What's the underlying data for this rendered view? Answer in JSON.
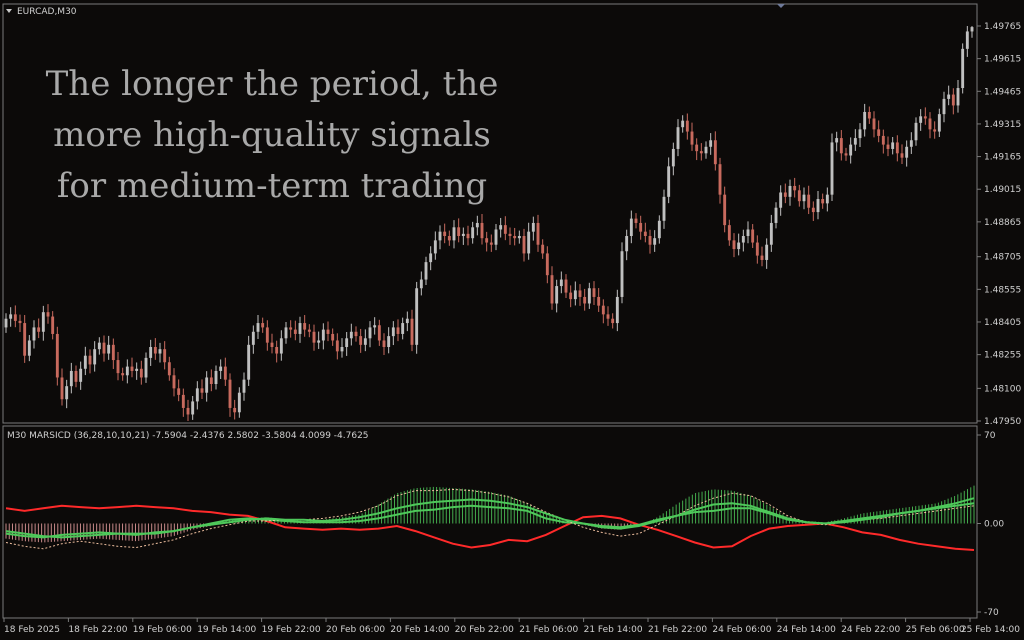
{
  "chart_data": [
    {
      "type": "candlestick",
      "title": "EURCAD,M30",
      "y_ticks": [
        "1.49765",
        "1.49615",
        "1.49465",
        "1.49315",
        "1.49165",
        "1.49015",
        "1.48865",
        "1.48705",
        "1.48555",
        "1.48405",
        "1.48255",
        "1.48100",
        "1.47950"
      ],
      "ylim": [
        1.4795,
        1.49765
      ],
      "x_ticks": [
        "18 Feb 2025",
        "18 Feb 22:00",
        "19 Feb 06:00",
        "19 Feb 14:00",
        "19 Feb 22:00",
        "20 Feb 06:00",
        "20 Feb 14:00",
        "20 Feb 22:00",
        "21 Feb 06:00",
        "21 Feb 14:00",
        "21 Feb 22:00",
        "24 Feb 06:00",
        "24 Feb 14:00",
        "24 Feb 22:00",
        "25 Feb 06:00",
        "25 Feb 14:00"
      ],
      "colors": {
        "bull": "#c0c0c0",
        "bear": "#c86a5e"
      },
      "close": [
        1.4842,
        1.4844,
        1.4841,
        1.484,
        1.4825,
        1.4832,
        1.4838,
        1.4836,
        1.4845,
        1.4843,
        1.4835,
        1.4815,
        1.4805,
        1.4811,
        1.4818,
        1.4813,
        1.4819,
        1.4825,
        1.4821,
        1.4828,
        1.4831,
        1.4826,
        1.483,
        1.4823,
        1.4817,
        1.4816,
        1.482,
        1.4818,
        1.4819,
        1.4815,
        1.4824,
        1.4829,
        1.4826,
        1.4828,
        1.4822,
        1.4816,
        1.481,
        1.4807,
        1.4801,
        1.4798,
        1.4804,
        1.481,
        1.4808,
        1.4815,
        1.4812,
        1.4818,
        1.482,
        1.4814,
        1.4801,
        1.4799,
        1.4808,
        1.4814,
        1.483,
        1.4836,
        1.484,
        1.4838,
        1.4831,
        1.4829,
        1.4826,
        1.4833,
        1.4838,
        1.4837,
        1.4835,
        1.484,
        1.4837,
        1.4836,
        1.4831,
        1.4832,
        1.4837,
        1.4835,
        1.4832,
        1.4827,
        1.4829,
        1.4833,
        1.4836,
        1.4834,
        1.483,
        1.4833,
        1.4838,
        1.4839,
        1.4832,
        1.4829,
        1.4834,
        1.4838,
        1.4835,
        1.484,
        1.4842,
        1.483,
        1.4856,
        1.486,
        1.4868,
        1.4872,
        1.4878,
        1.4882,
        1.488,
        1.4878,
        1.4884,
        1.488,
        1.4881,
        1.4879,
        1.4884,
        1.4886,
        1.4879,
        1.4877,
        1.4876,
        1.4883,
        1.4885,
        1.4881,
        1.488,
        1.4879,
        1.488,
        1.4872,
        1.4882,
        1.4886,
        1.4876,
        1.4872,
        1.4862,
        1.4849,
        1.4857,
        1.486,
        1.4854,
        1.4851,
        1.4855,
        1.4852,
        1.4849,
        1.4856,
        1.4852,
        1.4848,
        1.4844,
        1.4842,
        1.484,
        1.4852,
        1.4873,
        1.488,
        1.4888,
        1.4886,
        1.4882,
        1.488,
        1.4876,
        1.4879,
        1.4887,
        1.4898,
        1.4912,
        1.492,
        1.493,
        1.4933,
        1.4928,
        1.4922,
        1.4919,
        1.4918,
        1.4921,
        1.4924,
        1.4913,
        1.4899,
        1.4885,
        1.4878,
        1.4874,
        1.4877,
        1.488,
        1.4883,
        1.4877,
        1.4871,
        1.4869,
        1.4876,
        1.4886,
        1.4893,
        1.49,
        1.4898,
        1.4903,
        1.4901,
        1.4896,
        1.4899,
        1.4893,
        1.4891,
        1.4897,
        1.4895,
        1.4899,
        1.4923,
        1.4925,
        1.4918,
        1.4917,
        1.4922,
        1.4925,
        1.4929,
        1.4937,
        1.4934,
        1.4929,
        1.4926,
        1.4922,
        1.492,
        1.4923,
        1.4918,
        1.4916,
        1.4921,
        1.4924,
        1.4932,
        1.4935,
        1.4934,
        1.4929,
        1.4928,
        1.4936,
        1.4943,
        1.4945,
        1.494,
        1.4948,
        1.4966,
        1.4974,
        1.4976
      ]
    },
    {
      "type": "line",
      "title": "M30 MARSICD (36,28,10,10,21) -7.5904 -2.4376 2.5802 -3.5804 4.0099 -4.7625",
      "y_ticks": [
        "70",
        "0.00",
        "-70"
      ],
      "ylim": [
        -70,
        70
      ],
      "series": [
        {
          "color": "#ff2a2a",
          "values": [
            12,
            10,
            12,
            14,
            13,
            12,
            13,
            14,
            13,
            12,
            10,
            9,
            7,
            6,
            2,
            -3,
            -4,
            -5,
            -4,
            -5,
            -4,
            -2,
            -6,
            -11,
            -16,
            -19,
            -17,
            -13,
            -14,
            -9,
            -2,
            5,
            6,
            4,
            -1,
            -5,
            -10,
            -15,
            -19,
            -18,
            -10,
            -4,
            -2,
            -1,
            0,
            -3,
            -7,
            -9,
            -13,
            -16,
            -18,
            -20,
            -21
          ]
        },
        {
          "color": "#4ec85a",
          "values": [
            -8,
            -10,
            -11,
            -9,
            -8,
            -7,
            -8,
            -9,
            -7,
            -6,
            -3,
            0,
            3,
            4,
            3,
            2,
            1,
            1,
            1,
            2,
            4,
            7,
            10,
            11,
            13,
            14,
            13,
            12,
            10,
            4,
            1,
            0,
            -2,
            -3,
            -1,
            3,
            6,
            9,
            10,
            12,
            12,
            8,
            3,
            1,
            0,
            2,
            4,
            6,
            8,
            10,
            12,
            14,
            16
          ]
        },
        {
          "color": "#f0c0a0",
          "values": [
            -15,
            -18,
            -20,
            -16,
            -14,
            -16,
            -18,
            -19,
            -16,
            -13,
            -8,
            -4,
            -1,
            2,
            2,
            3,
            3,
            4,
            6,
            9,
            14,
            22,
            26,
            26,
            27,
            26,
            24,
            21,
            16,
            9,
            3,
            -3,
            -7,
            -10,
            -8,
            -1,
            6,
            14,
            20,
            24,
            22,
            15,
            6,
            1,
            -1,
            1,
            3,
            4,
            6,
            8,
            10,
            12,
            14
          ]
        },
        {
          "color": "#4ec85a",
          "values": [
            -6,
            -8,
            -10,
            -11,
            -10,
            -9,
            -8,
            -8,
            -8,
            -6,
            -3,
            -1,
            1,
            3,
            4,
            3,
            3,
            2,
            3,
            5,
            8,
            12,
            15,
            17,
            18,
            19,
            18,
            16,
            13,
            8,
            3,
            0,
            -3,
            -4,
            -2,
            2,
            6,
            11,
            15,
            16,
            14,
            9,
            4,
            1,
            0,
            1,
            3,
            5,
            8,
            10,
            13,
            16,
            20
          ]
        }
      ],
      "histogram": [
        -12,
        -14,
        -15,
        -14,
        -13,
        -12,
        -13,
        -14,
        -12,
        -10,
        -5,
        -2,
        3,
        4,
        5,
        3,
        2,
        3,
        5,
        7,
        15,
        24,
        28,
        29,
        28,
        27,
        25,
        22,
        16,
        8,
        2,
        -1,
        -4,
        -5,
        -2,
        5,
        15,
        24,
        27,
        26,
        22,
        14,
        5,
        2,
        1,
        4,
        8,
        10,
        12,
        14,
        16,
        22,
        30
      ]
    }
  ],
  "overlay_text": [
    "The longer the period, the",
    "more high-quality signals",
    "for medium-term trading"
  ]
}
